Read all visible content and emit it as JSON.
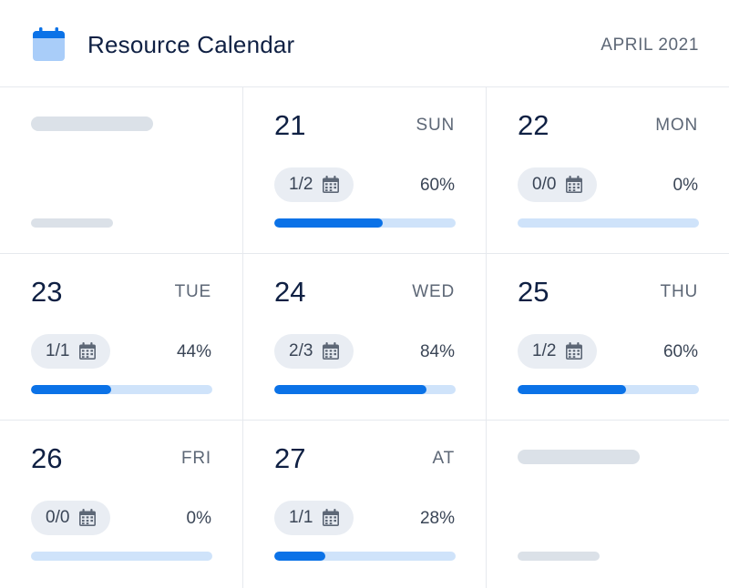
{
  "header": {
    "title": "Resource Calendar",
    "month": "APRIL 2021",
    "icon": "calendar-icon"
  },
  "colors": {
    "accent": "#0b72e7",
    "track": "#cfe3fa",
    "pill_bg": "#e9edf3",
    "skeleton": "#dbe1e8",
    "text_primary": "#0f2043",
    "text_secondary": "#5d6776"
  },
  "days": [
    {
      "day": "21",
      "weekday": "SUN",
      "booked": "1/2",
      "percent": "60%",
      "fill": 0.6
    },
    {
      "day": "22",
      "weekday": "MON",
      "booked": "0/0",
      "percent": "0%",
      "fill": 0
    },
    {
      "day": "23",
      "weekday": "TUE",
      "booked": "1/1",
      "percent": "44%",
      "fill": 0.44
    },
    {
      "day": "24",
      "weekday": "WED",
      "booked": "2/3",
      "percent": "84%",
      "fill": 0.84
    },
    {
      "day": "25",
      "weekday": "THU",
      "booked": "1/2",
      "percent": "60%",
      "fill": 0.6
    },
    {
      "day": "26",
      "weekday": "FRI",
      "booked": "0/0",
      "percent": "0%",
      "fill": 0
    },
    {
      "day": "27",
      "weekday": "AT",
      "booked": "1/1",
      "percent": "28%",
      "fill": 0.28
    }
  ]
}
